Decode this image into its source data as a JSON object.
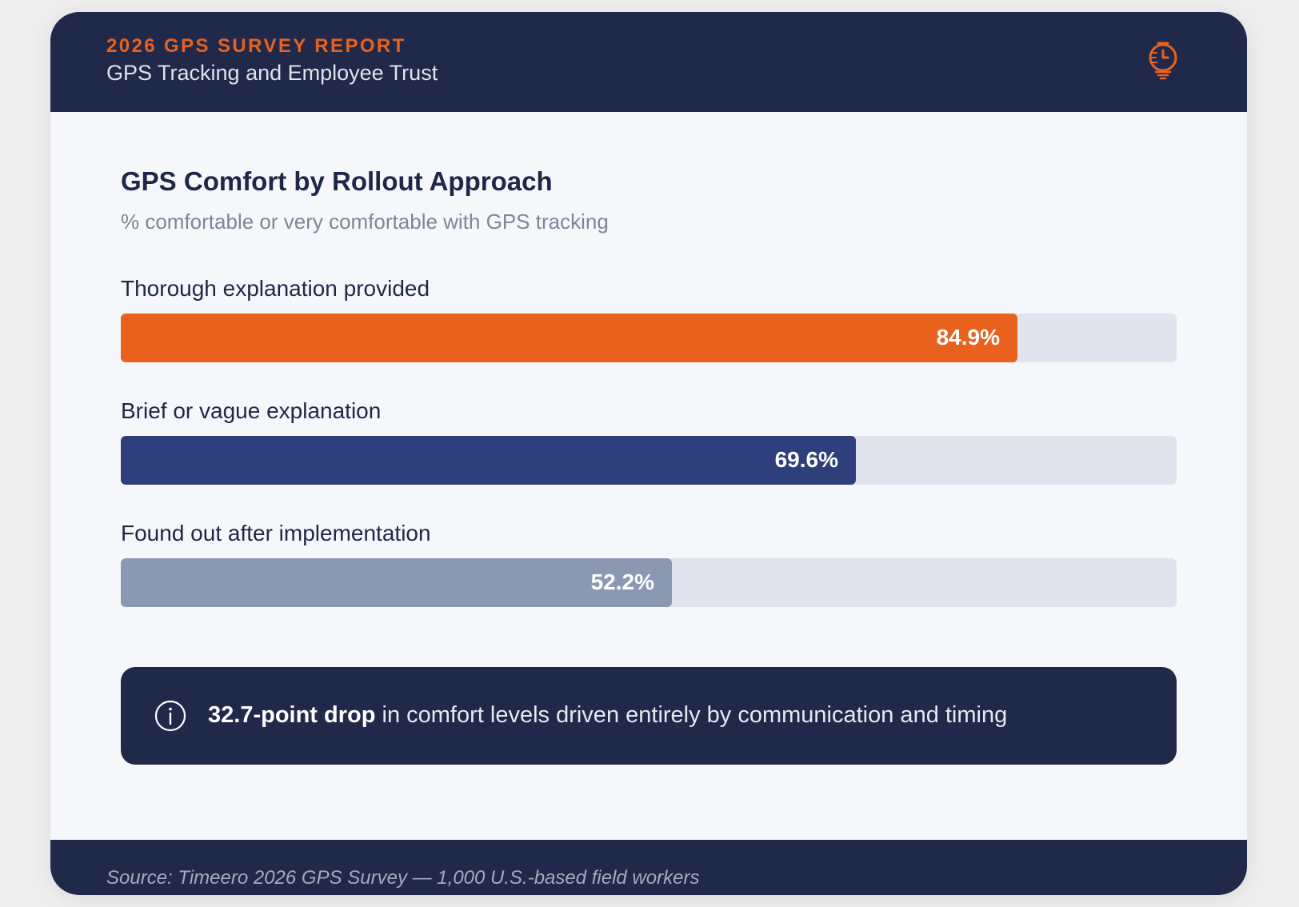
{
  "header": {
    "eyebrow": "2026 GPS SURVEY REPORT",
    "subtitle": "GPS Tracking and Employee Trust",
    "logo_icon": "stopwatch-pin-icon"
  },
  "colors": {
    "accent_orange": "#e8621e",
    "navy": "#20294a",
    "blue_bar": "#2e3f7c",
    "gray_bar": "#8a98b2",
    "track": "#e1e4ec"
  },
  "chart_data": {
    "type": "bar",
    "orientation": "horizontal",
    "title": "GPS Comfort by Rollout Approach",
    "subtitle": "% comfortable or very comfortable with GPS tracking",
    "categories": [
      "Thorough explanation provided",
      "Brief or vague explanation",
      "Found out after implementation"
    ],
    "values": [
      84.9,
      69.6,
      52.2
    ],
    "value_labels": [
      "84.9%",
      "69.6%",
      "52.2%"
    ],
    "bar_colors": [
      "#e8621e",
      "#2e3f7c",
      "#8a98b2"
    ],
    "xlim": [
      0,
      100
    ],
    "unit": "%",
    "grid": false
  },
  "callout": {
    "icon": "info-icon",
    "highlight": "32.7-point drop",
    "text": " in comfort levels driven entirely by communication and timing"
  },
  "footer": {
    "source": "Source: Timeero 2026 GPS Survey — 1,000 U.S.-based field workers"
  }
}
